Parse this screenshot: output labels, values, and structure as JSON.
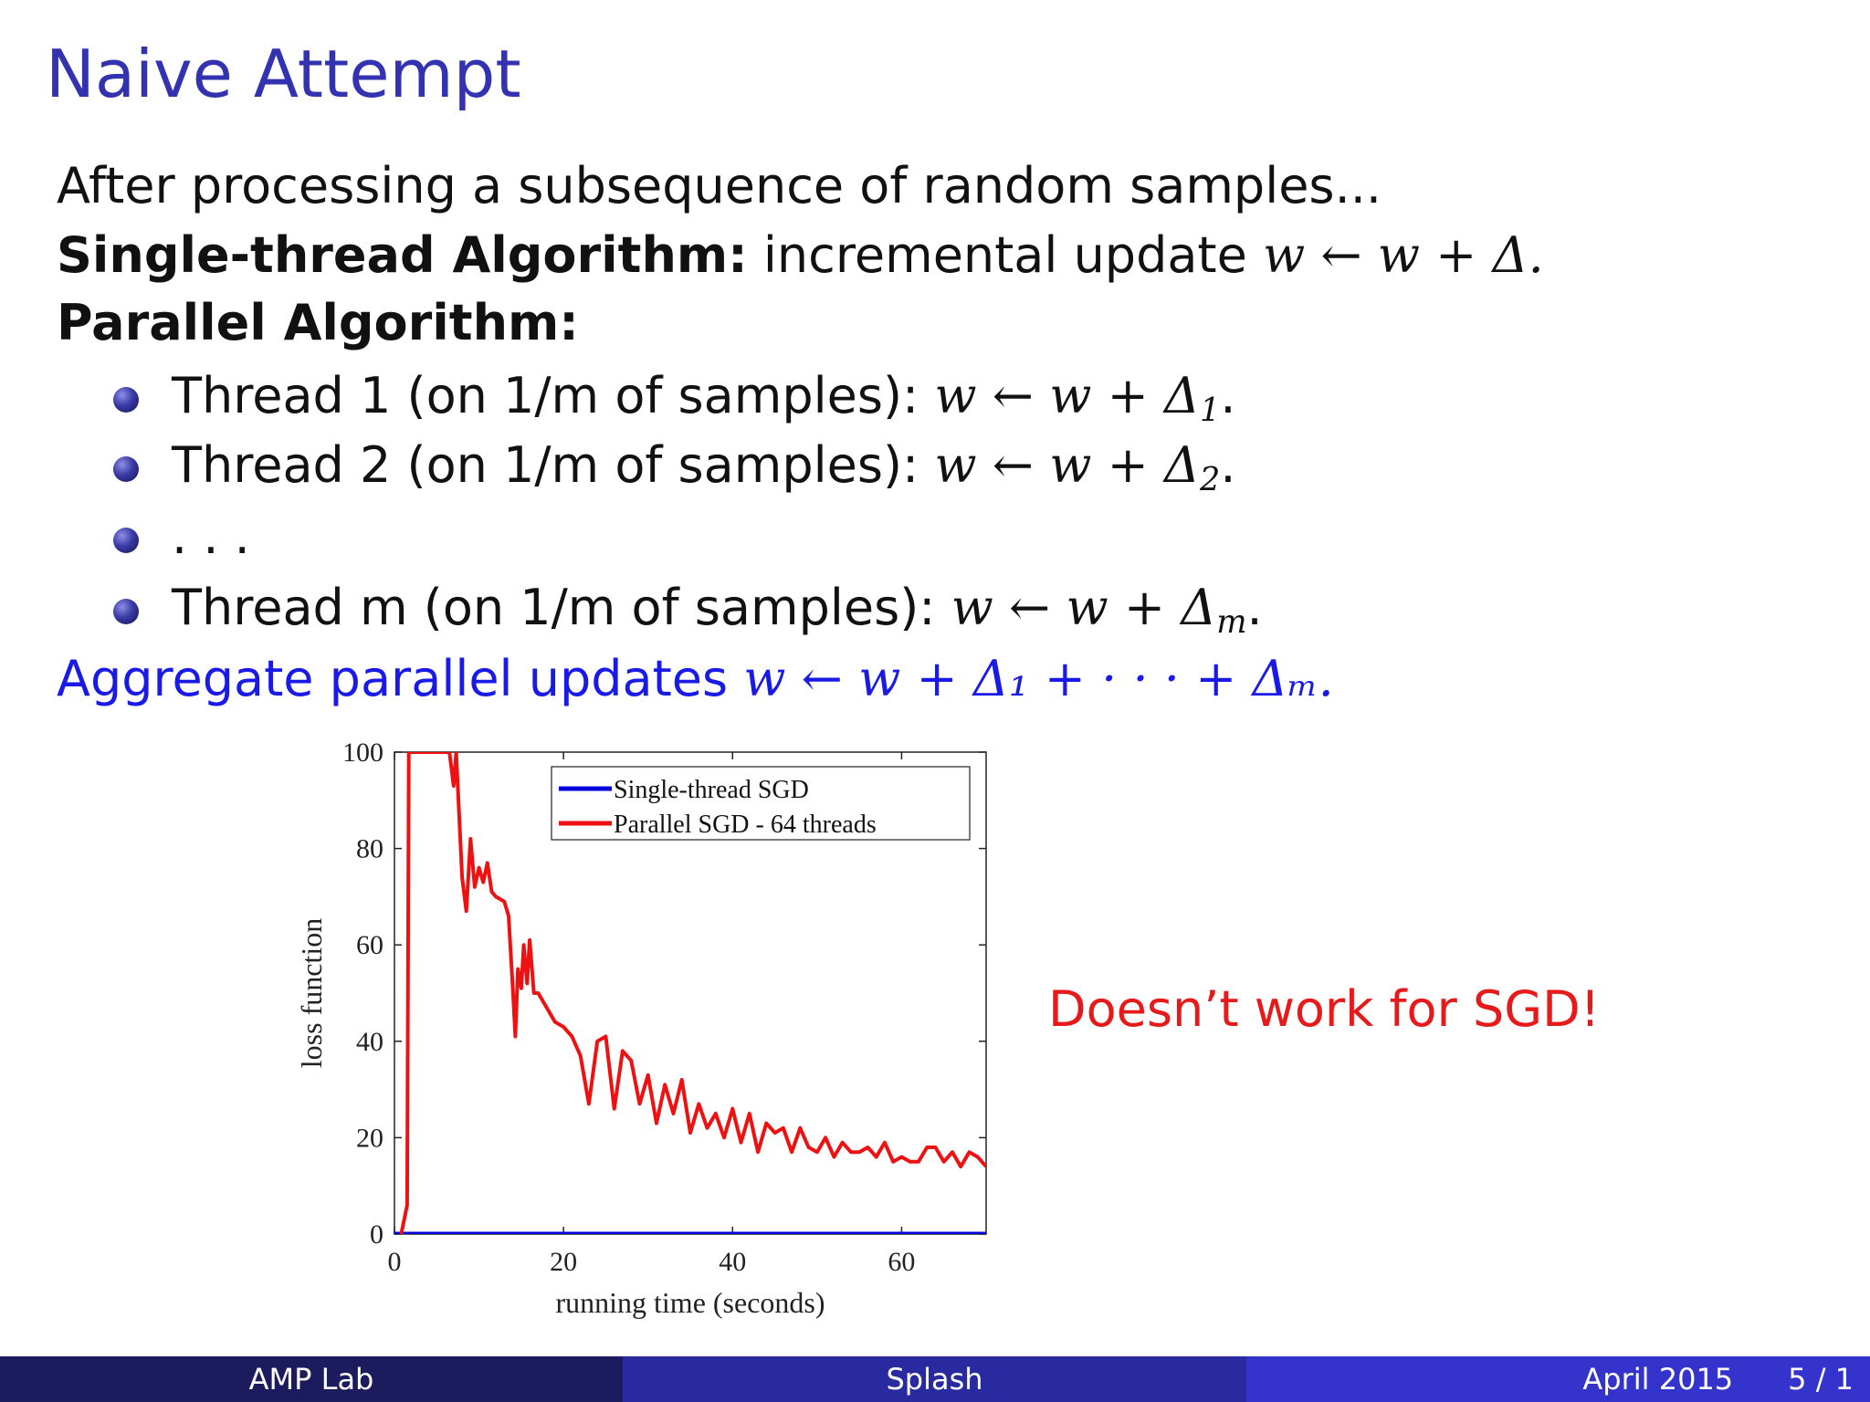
{
  "slide": {
    "title": "Naive Attempt",
    "intro": "After processing a subsequence of random samples...",
    "single_label": "Single-thread Algorithm:",
    "single_text": " incremental update ",
    "single_math": "w ← w + Δ.",
    "parallel_label": "Parallel Algorithm:",
    "bullets": [
      {
        "text": "Thread 1 (on 1/m of samples): ",
        "math": "w ← w + Δ",
        "sub": "1",
        "end": "."
      },
      {
        "text": "Thread 2 (on 1/m of samples): ",
        "math": "w ← w + Δ",
        "sub": "2",
        "end": "."
      },
      {
        "text": ". . .",
        "math": "",
        "sub": "",
        "end": ""
      },
      {
        "text": "Thread m (on 1/m of samples): ",
        "math": "w ← w + Δ",
        "sub": "m",
        "end": "."
      }
    ],
    "aggregate_text": "Aggregate parallel updates ",
    "aggregate_math": "w ← w + Δ₁ + · · · + Δₘ.",
    "note": "Doesn’t work for SGD!"
  },
  "chart_data": {
    "type": "line",
    "xlabel": "running time (seconds)",
    "ylabel": "loss function",
    "xlim": [
      0,
      70
    ],
    "ylim": [
      0,
      100
    ],
    "x_ticks": [
      "0",
      "20",
      "40",
      "60"
    ],
    "y_ticks": [
      "0",
      "20",
      "40",
      "60",
      "80",
      "100"
    ],
    "legend_position": "top-right",
    "series": [
      {
        "name": "Single-thread SGD",
        "color": "#0000dd",
        "x": [
          0,
          70
        ],
        "y": [
          0,
          0
        ]
      },
      {
        "name": "Parallel SGD - 64 threads",
        "color": "#ee1111",
        "x": [
          0.8,
          1.5,
          1.7,
          2.0,
          6.5,
          7.0,
          7.3,
          8.0,
          8.5,
          9.0,
          9.5,
          10.0,
          10.5,
          11.0,
          11.5,
          12.0,
          13.0,
          13.5,
          14.0,
          14.3,
          14.6,
          15.0,
          15.3,
          15.7,
          16.0,
          16.5,
          17.0,
          18.0,
          19.0,
          20.0,
          21.0,
          22.0,
          23.0,
          24.0,
          25.0,
          26.0,
          27.0,
          28.0,
          29.0,
          30.0,
          31.0,
          32.0,
          33.0,
          34.0,
          35.0,
          36.0,
          37.0,
          38.0,
          39.0,
          40.0,
          41.0,
          42.0,
          43.0,
          44.0,
          45.0,
          46.0,
          47.0,
          48.0,
          49.0,
          50.0,
          51.0,
          52.0,
          53.0,
          54.0,
          55.0,
          56.0,
          57.0,
          58.0,
          59.0,
          60.0,
          61.0,
          62.0,
          63.0,
          64.0,
          65.0,
          66.0,
          67.0,
          68.0,
          69.0,
          70.0
        ],
        "y": [
          0,
          6,
          100,
          100,
          100,
          93,
          100,
          74,
          67,
          82,
          72,
          76,
          73,
          77,
          71,
          70,
          69,
          66,
          51,
          41,
          55,
          51,
          60,
          52,
          61,
          50,
          50,
          47,
          44,
          43,
          41,
          37,
          27,
          40,
          41,
          26,
          38,
          36,
          27,
          33,
          23,
          31,
          25,
          32,
          21,
          27,
          22,
          25,
          20,
          26,
          19,
          25,
          17,
          23,
          21,
          22,
          17,
          22,
          18,
          17,
          20,
          16,
          19,
          17,
          17,
          18,
          16,
          19,
          15,
          16,
          15,
          15,
          18,
          18,
          15,
          17,
          14,
          17,
          16,
          14
        ]
      }
    ]
  },
  "footer": {
    "left": "AMP Lab",
    "center": "Splash",
    "date": "April 2015",
    "page": "5 / 1"
  }
}
